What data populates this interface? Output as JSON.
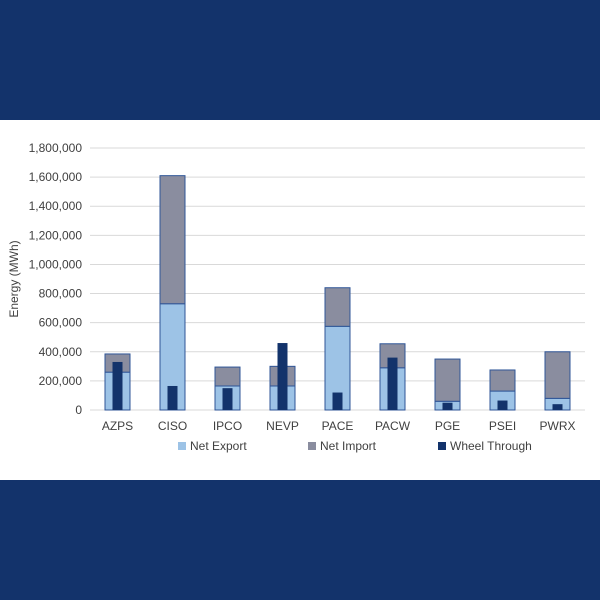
{
  "colors": {
    "background": "#13336b",
    "panel": "#ffffff",
    "net_export": "#9dc3e6",
    "net_import": "#8a8d9f",
    "wheel_through": "#13336b",
    "bar_outline": "#2f5597",
    "grid": "#d9d9d9"
  },
  "chart_data": {
    "type": "bar",
    "title": "",
    "ylabel": "Energy (MWh)",
    "xlabel": "",
    "ylim": [
      0,
      1800000
    ],
    "yticks": [
      0,
      200000,
      400000,
      600000,
      800000,
      1000000,
      1200000,
      1400000,
      1600000,
      1800000
    ],
    "ytick_labels": [
      "0",
      "200,000",
      "400,000",
      "600,000",
      "800,000",
      "1,000,000",
      "1,200,000",
      "1,400,000",
      "1,600,000",
      "1,800,000"
    ],
    "grid": true,
    "legend_position": "bottom",
    "categories": [
      "AZPS",
      "CISO",
      "IPCO",
      "NEVP",
      "PACE",
      "PACW",
      "PGE",
      "PSEI",
      "PWRX"
    ],
    "stacked_series": [
      {
        "name": "Net Export",
        "color": "#9dc3e6",
        "values": [
          260000,
          730000,
          165000,
          165000,
          575000,
          290000,
          60000,
          130000,
          80000
        ]
      },
      {
        "name": "Net Import",
        "color": "#8a8d9f",
        "values": [
          125000,
          880000,
          130000,
          135000,
          265000,
          165000,
          290000,
          145000,
          320000
        ]
      }
    ],
    "overlay_series": {
      "name": "Wheel Through",
      "color": "#13336b",
      "values": [
        330000,
        165000,
        150000,
        460000,
        120000,
        360000,
        50000,
        65000,
        40000
      ]
    }
  }
}
